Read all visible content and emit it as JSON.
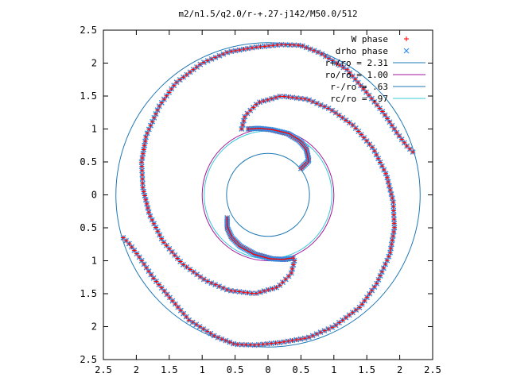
{
  "chart_data": {
    "type": "scatter",
    "title": "m2/n1.5/q2.0/r-+.27-j142/M50.0/512",
    "xlim": [
      -2.5,
      2.5
    ],
    "ylim": [
      -2.5,
      2.5
    ],
    "x_ticks": [
      -2.5,
      -2,
      -1.5,
      -1,
      -0.5,
      0,
      0.5,
      1,
      1.5,
      2,
      2.5
    ],
    "x_tick_labels": [
      "2.5",
      "2",
      "1.5",
      "1",
      "0.5",
      "0",
      "0.5",
      "1",
      "1.5",
      "2",
      "2.5"
    ],
    "y_ticks": [
      2.5,
      2,
      1.5,
      1,
      0.5,
      0,
      -0.5,
      -1,
      -1.5,
      -2,
      -2.5
    ],
    "y_tick_labels": [
      "2.5",
      "2",
      "1.5",
      "1",
      "0.5",
      "0",
      "0.5",
      "1",
      "1.5",
      "2",
      "2.5"
    ],
    "legend_position": "top-right",
    "grid": false,
    "series": [
      {
        "name": "W phase",
        "marker": "+",
        "color": "#ff0000"
      },
      {
        "name": "drho phase",
        "marker": "x",
        "color": "#2f8fe8"
      }
    ],
    "circles": [
      {
        "name": "r+/ro = 2.31",
        "radius": 2.31,
        "color": "#1f78b4"
      },
      {
        "name": "ro/ro = 1.00",
        "radius": 1.0,
        "color": "#a4149c"
      },
      {
        "name": "r-/ro = .63",
        "radius": 0.63,
        "color": "#1f78b4"
      },
      {
        "name": "rc/ro = .97",
        "radius": 0.97,
        "color": "#36c8d8"
      }
    ],
    "spiral_arms": [
      {
        "points": [
          [
            -0.4,
            1.0
          ],
          [
            -0.35,
            1.2
          ],
          [
            -0.15,
            1.4
          ],
          [
            0.2,
            1.5
          ],
          [
            0.6,
            1.45
          ],
          [
            0.95,
            1.3
          ],
          [
            1.3,
            1.05
          ],
          [
            1.6,
            0.7
          ],
          [
            1.8,
            0.3
          ],
          [
            1.9,
            -0.1
          ],
          [
            1.92,
            -0.5
          ],
          [
            1.85,
            -0.9
          ],
          [
            1.65,
            -1.35
          ],
          [
            1.4,
            -1.7
          ],
          [
            1.0,
            -2.0
          ],
          [
            0.6,
            -2.17
          ],
          [
            0.2,
            -2.24
          ],
          [
            -0.2,
            -2.28
          ],
          [
            -0.5,
            -2.27
          ],
          [
            -0.8,
            -2.15
          ],
          [
            -1.2,
            -1.9
          ],
          [
            -1.5,
            -1.55
          ],
          [
            -1.75,
            -1.25
          ],
          [
            -1.95,
            -0.95
          ],
          [
            -2.1,
            -0.75
          ],
          [
            -2.2,
            -0.65
          ]
        ]
      },
      {
        "points": [
          [
            0.4,
            -1.0
          ],
          [
            0.35,
            -1.2
          ],
          [
            0.15,
            -1.4
          ],
          [
            -0.2,
            -1.5
          ],
          [
            -0.6,
            -1.45
          ],
          [
            -0.95,
            -1.3
          ],
          [
            -1.3,
            -1.05
          ],
          [
            -1.6,
            -0.7
          ],
          [
            -1.8,
            -0.3
          ],
          [
            -1.9,
            0.1
          ],
          [
            -1.92,
            0.5
          ],
          [
            -1.85,
            0.9
          ],
          [
            -1.65,
            1.35
          ],
          [
            -1.4,
            1.7
          ],
          [
            -1.0,
            2.0
          ],
          [
            -0.6,
            2.17
          ],
          [
            -0.2,
            2.24
          ],
          [
            0.2,
            2.28
          ],
          [
            0.5,
            2.27
          ],
          [
            0.8,
            2.15
          ],
          [
            1.2,
            1.9
          ],
          [
            1.5,
            1.55
          ],
          [
            1.75,
            1.25
          ],
          [
            1.95,
            0.95
          ],
          [
            2.1,
            0.75
          ],
          [
            2.2,
            0.65
          ]
        ]
      },
      {
        "points": [
          [
            0.5,
            0.4
          ],
          [
            0.62,
            0.52
          ],
          [
            0.58,
            0.7
          ],
          [
            0.48,
            0.82
          ],
          [
            0.3,
            0.93
          ],
          [
            0.05,
            0.99
          ],
          [
            -0.15,
            1.01
          ],
          [
            -0.3,
            1.0
          ]
        ]
      },
      {
        "points": [
          [
            -0.62,
            -0.35
          ],
          [
            -0.62,
            -0.5
          ],
          [
            -0.55,
            -0.65
          ],
          [
            -0.42,
            -0.78
          ],
          [
            -0.2,
            -0.9
          ],
          [
            0.05,
            -0.97
          ],
          [
            0.25,
            -0.98
          ],
          [
            0.38,
            -0.96
          ]
        ]
      }
    ]
  }
}
